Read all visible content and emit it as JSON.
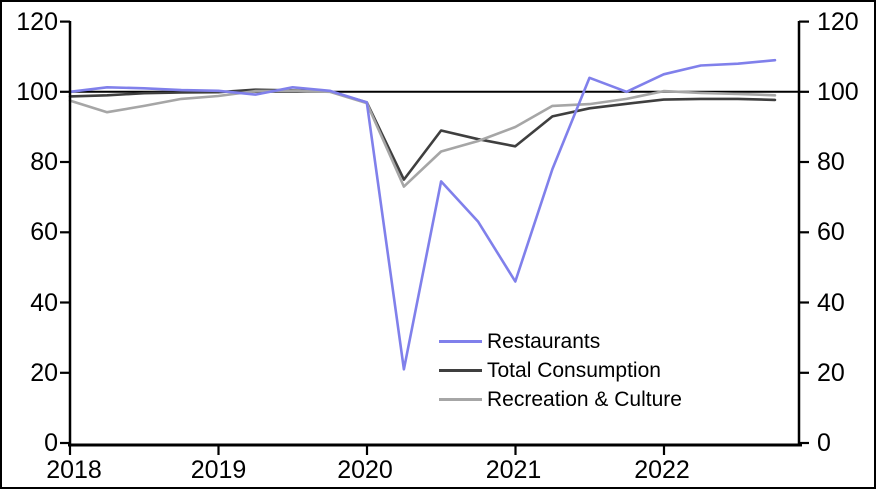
{
  "chart_data": {
    "type": "line",
    "categories": [
      "2018 Q1",
      "2018 Q2",
      "2018 Q3",
      "2018 Q4",
      "2019 Q1",
      "2019 Q2",
      "2019 Q3",
      "2019 Q4",
      "2020 Q1",
      "2020 Q2",
      "2020 Q3",
      "2020 Q4",
      "2021 Q1",
      "2021 Q2",
      "2021 Q3",
      "2021 Q4",
      "2022 Q1",
      "2022 Q2",
      "2022 Q3",
      "2022 Q4"
    ],
    "series": [
      {
        "name": "Restaurants",
        "color": "#8080EB",
        "values": [
          100,
          101.3,
          101,
          100.5,
          100.3,
          99.2,
          101.3,
          100.3,
          97,
          21,
          74.5,
          63,
          46,
          78,
          104,
          100,
          105,
          107.5,
          108,
          109
        ]
      },
      {
        "name": "Total Consumption",
        "color": "#3F3F3F",
        "values": [
          98.7,
          99,
          99.6,
          99.8,
          99.9,
          100.6,
          100.4,
          100.1,
          97,
          75,
          89,
          86.5,
          84.5,
          93,
          95.3,
          96.6,
          97.8,
          98,
          98,
          97.7
        ]
      },
      {
        "name": "Recreation & Culture",
        "color": "#A6A6A6",
        "values": [
          97.5,
          94.2,
          96,
          98,
          98.8,
          100.2,
          100.3,
          100,
          96.8,
          73,
          83,
          86,
          90,
          96,
          96.5,
          98,
          100.2,
          99.7,
          99.4,
          99
        ]
      }
    ],
    "reference_line": 100,
    "x_axis": {
      "tick_labels": [
        "2018",
        "2019",
        "2020",
        "2021",
        "2022"
      ]
    },
    "y_axis": {
      "tick_labels": [
        "0",
        "20",
        "40",
        "60",
        "80",
        "100",
        "120"
      ],
      "min": 0,
      "max": 120,
      "dual": true
    },
    "grid": "off",
    "legend_position": "inside-bottom-center",
    "axis_color": "#000000",
    "background_color": "#FFFFFF"
  }
}
